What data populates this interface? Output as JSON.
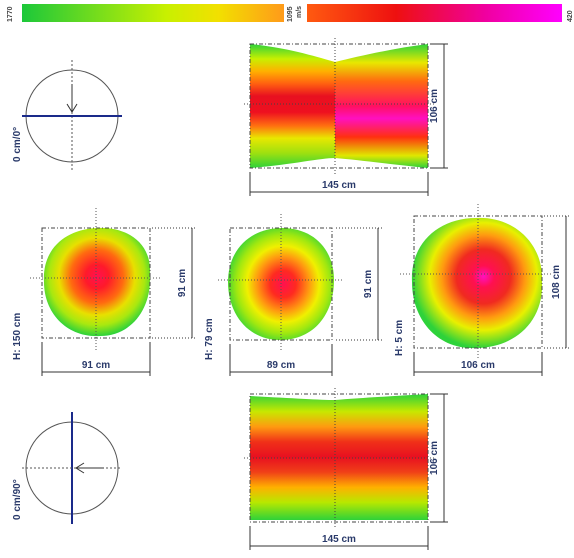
{
  "colorscale": {
    "max_label": "1770",
    "mid_label": "1095",
    "unit_label": "m/s",
    "min_label": "420",
    "colors": [
      "#1cc83a",
      "#f2f000",
      "#ff7000",
      "#e0102a",
      "#ff00ff"
    ]
  },
  "top_view": {
    "orientation_label": "0 cm/0°",
    "length_label": "145 cm",
    "height_label": "106 cm"
  },
  "sections": [
    {
      "height_label": "H: 150 cm",
      "width_label": "91 cm",
      "depth_label": "91 cm"
    },
    {
      "height_label": "H: 79 cm",
      "width_label": "89 cm",
      "depth_label": "91 cm"
    },
    {
      "height_label": "H: 5 cm",
      "width_label": "106 cm",
      "depth_label": "108 cm"
    }
  ],
  "bottom_view": {
    "orientation_label": "0 cm/90°",
    "length_label": "145 cm",
    "height_label": "106 cm"
  }
}
